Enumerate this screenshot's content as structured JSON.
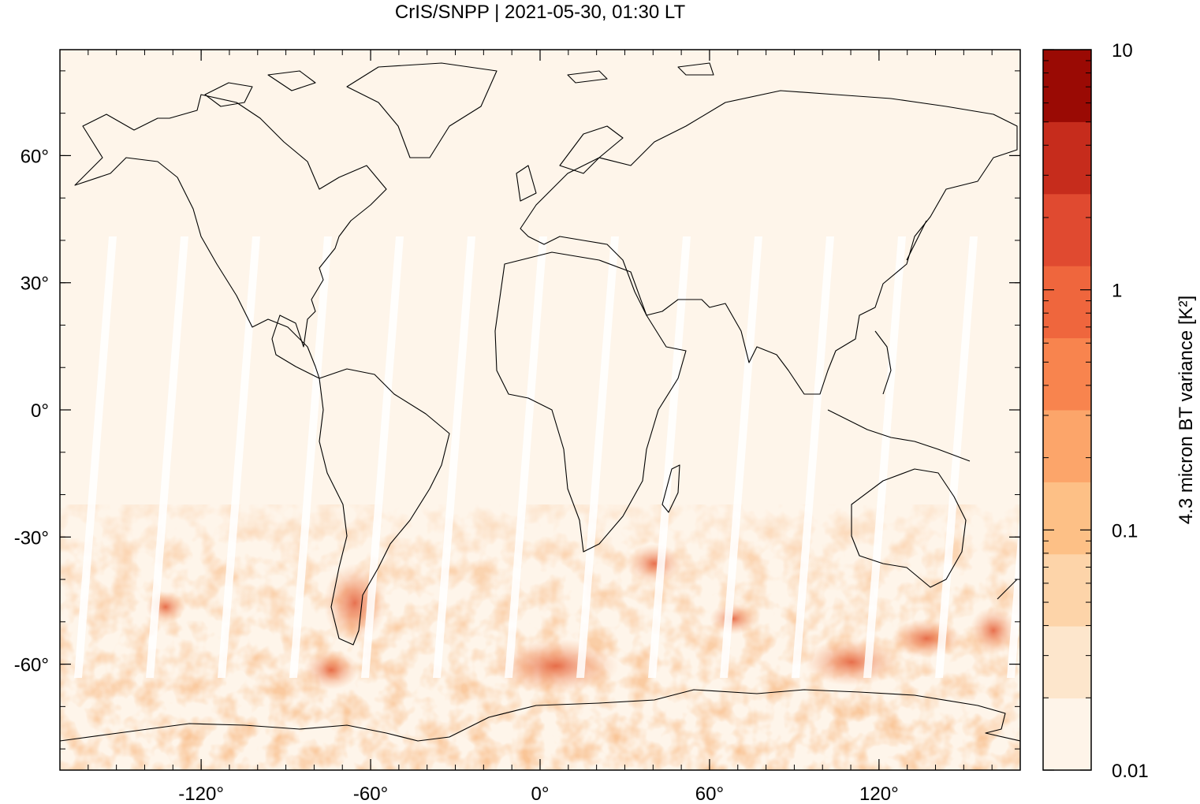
{
  "title": "CrIS/SNPP | 2021-05-30, 01:30 LT",
  "colors": {
    "background": "#fef5ea",
    "gap": "#ffffff",
    "coast": "#000000",
    "scale": [
      "#fef4e9",
      "#fde6cc",
      "#fdd4a9",
      "#fdc086",
      "#fca56a",
      "#f8844e",
      "#ef663d",
      "#e04a30",
      "#c62c1c",
      "#9a0a04"
    ]
  },
  "axes": {
    "x_ticks": [
      {
        "value": -120,
        "label": "-120°"
      },
      {
        "value": -60,
        "label": "-60°"
      },
      {
        "value": 0,
        "label": "0°"
      },
      {
        "value": 60,
        "label": "60°"
      },
      {
        "value": 120,
        "label": "120°"
      }
    ],
    "y_ticks": [
      {
        "value": 60,
        "label": "60°"
      },
      {
        "value": 30,
        "label": "30°"
      },
      {
        "value": 0,
        "label": "0°"
      },
      {
        "value": -30,
        "label": "-30°"
      },
      {
        "value": -60,
        "label": "-60°"
      }
    ],
    "xlim": [
      -170,
      170
    ],
    "ylim": [
      -85,
      85
    ]
  },
  "colorbar": {
    "label": "4.3 micron BT variance [K²]",
    "scale": "log",
    "range": [
      0.01,
      10
    ],
    "ticks": [
      {
        "value": 10,
        "label": "10"
      },
      {
        "value": 1,
        "label": "1"
      },
      {
        "value": 0.1,
        "label": "0.1"
      },
      {
        "value": 0.01,
        "label": "0.01"
      }
    ]
  }
}
